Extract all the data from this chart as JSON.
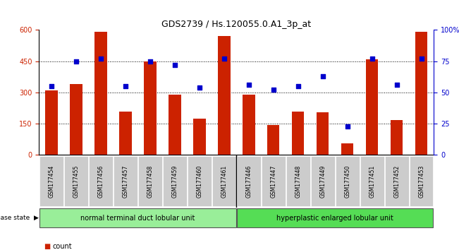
{
  "title": "GDS2739 / Hs.120055.0.A1_3p_at",
  "samples": [
    "GSM177454",
    "GSM177455",
    "GSM177456",
    "GSM177457",
    "GSM177458",
    "GSM177459",
    "GSM177460",
    "GSM177461",
    "GSM177446",
    "GSM177447",
    "GSM177448",
    "GSM177449",
    "GSM177450",
    "GSM177451",
    "GSM177452",
    "GSM177453"
  ],
  "counts": [
    310,
    340,
    590,
    210,
    450,
    290,
    175,
    570,
    290,
    145,
    210,
    205,
    55,
    460,
    168,
    590
  ],
  "percentiles": [
    55,
    75,
    77,
    55,
    75,
    72,
    54,
    77,
    56,
    52,
    55,
    63,
    23,
    77,
    56,
    77
  ],
  "group1_label": "normal terminal duct lobular unit",
  "group2_label": "hyperplastic enlarged lobular unit",
  "group1_count": 8,
  "group2_count": 8,
  "ylim_left": [
    0,
    600
  ],
  "ylim_right": [
    0,
    100
  ],
  "yticks_left": [
    0,
    150,
    300,
    450,
    600
  ],
  "yticks_right": [
    0,
    25,
    50,
    75,
    100
  ],
  "bar_color": "#cc2200",
  "dot_color": "#0000cc",
  "group1_color": "#99ee99",
  "group2_color": "#55dd55",
  "legend_count_color": "#cc2200",
  "legend_pct_color": "#0000cc",
  "tick_label_bg": "#cccccc",
  "hgrid_dotted": [
    150,
    300,
    450
  ]
}
